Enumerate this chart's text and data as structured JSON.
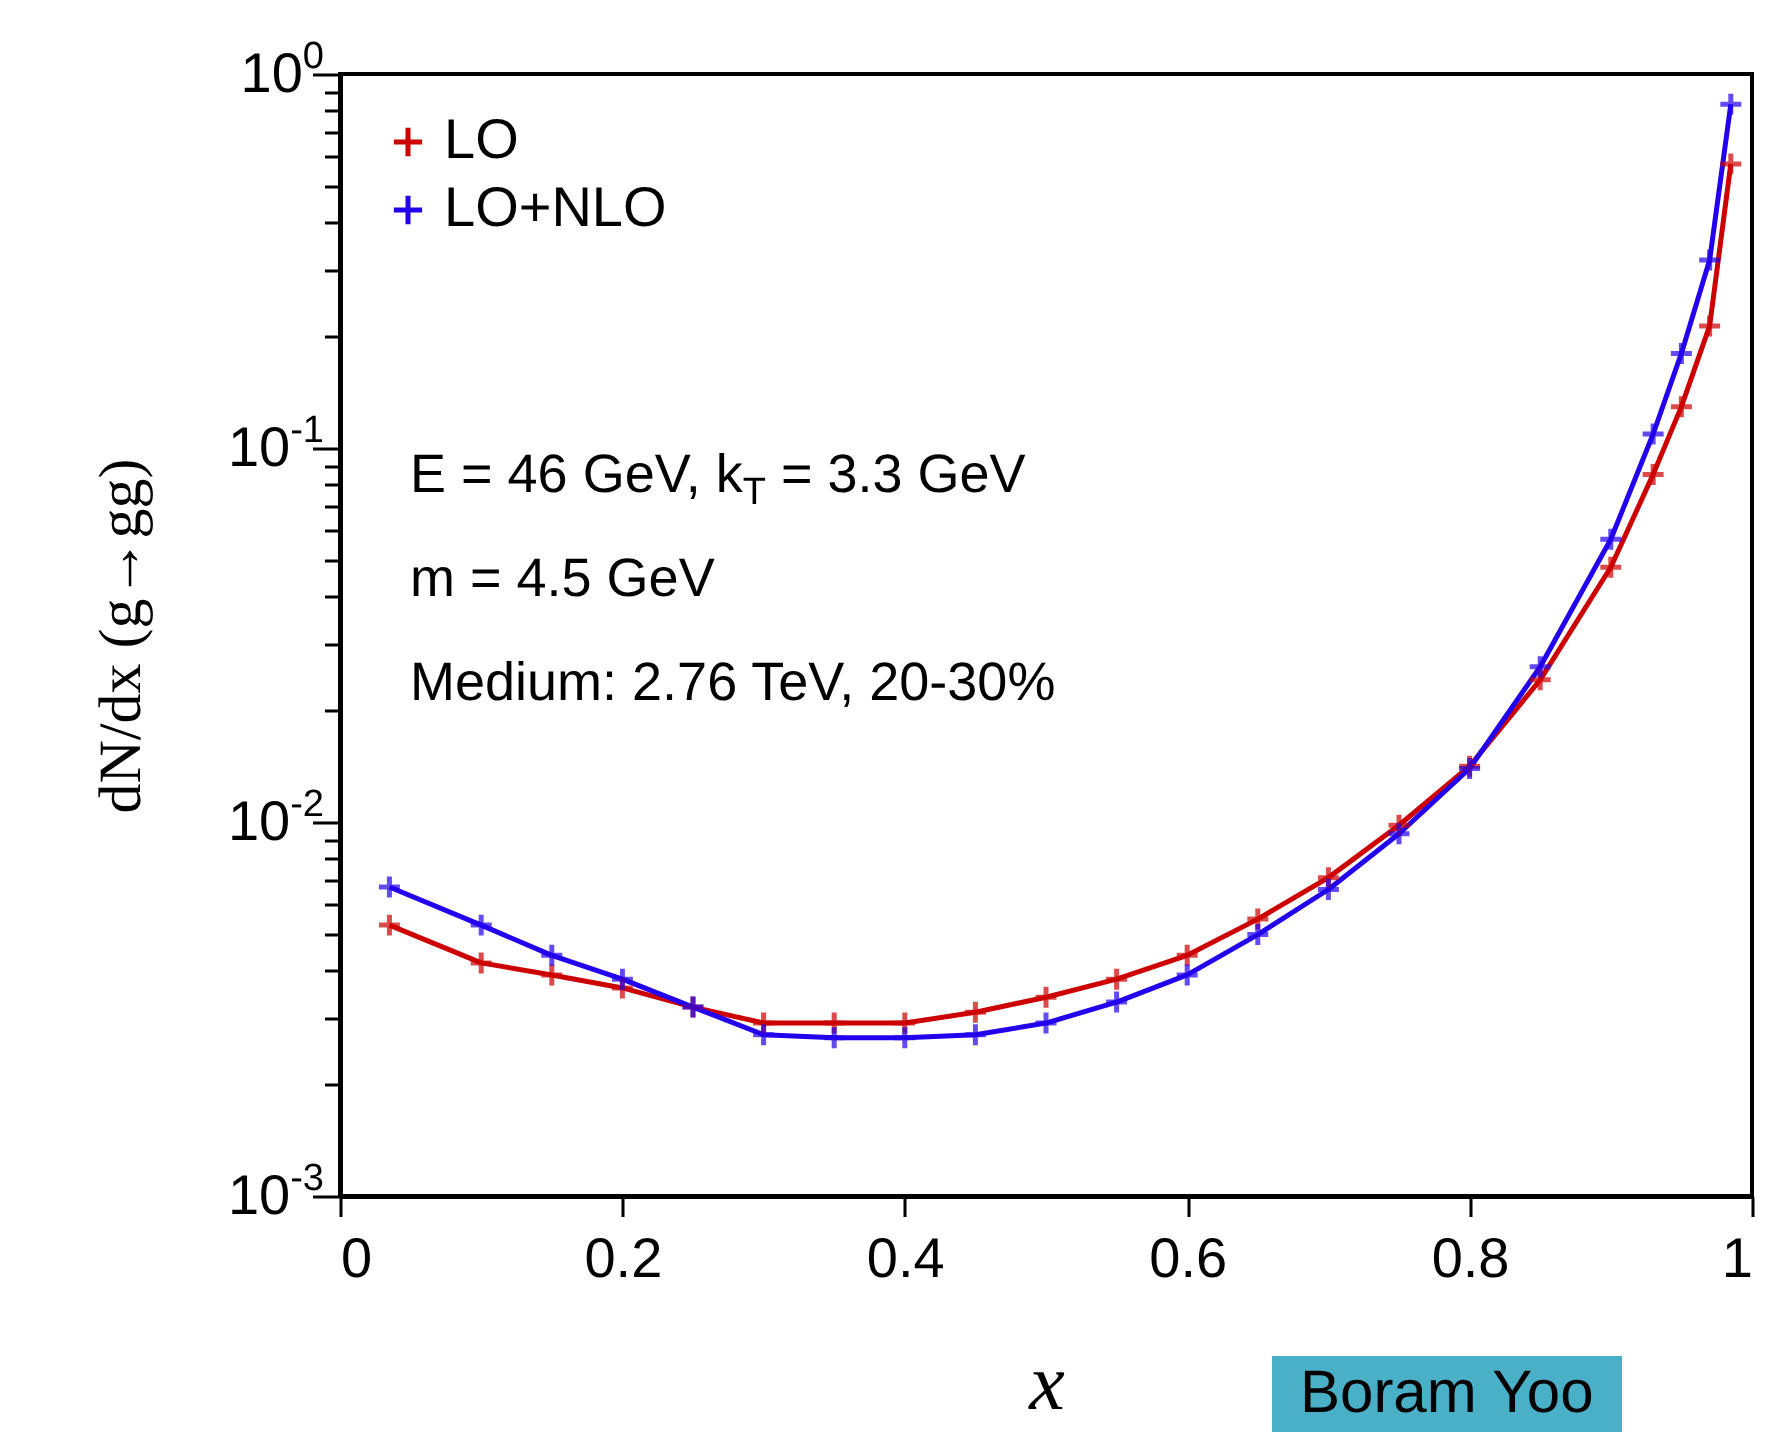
{
  "chart_data": {
    "type": "line",
    "xlabel": "x",
    "ylabel": "dN/dx  (g→gg)",
    "log": "y",
    "grid": false,
    "legend": "top left",
    "marker": "cross",
    "line_style": "solid",
    "x": [
      0.035,
      0.1,
      0.15,
      0.2,
      0.25,
      0.3,
      0.35,
      0.4,
      0.45,
      0.5,
      0.55,
      0.6,
      0.65,
      0.7,
      0.75,
      0.8,
      0.85,
      0.9,
      0.93,
      0.95,
      0.97,
      0.985
    ],
    "xlim": [
      0,
      1
    ],
    "xticks": [
      0,
      0.2,
      0.4,
      0.6,
      0.8,
      1
    ],
    "ylim": [
      0.001,
      1
    ],
    "yticks": [
      {
        "value": 0.001,
        "label": "10$^{-3}$"
      },
      {
        "value": 0.002,
        "label": null
      },
      {
        "value": 0.003,
        "label": null
      },
      {
        "value": 0.004,
        "label": null
      },
      {
        "value": 0.005,
        "label": null
      },
      {
        "value": 0.006,
        "label": null
      },
      {
        "value": 0.007,
        "label": null
      },
      {
        "value": 0.008,
        "label": null
      },
      {
        "value": 0.009,
        "label": null
      },
      {
        "value": 0.01,
        "label": "10$^{-2}$"
      },
      {
        "value": 0.02,
        "label": null
      },
      {
        "value": 0.03,
        "label": null
      },
      {
        "value": 0.04,
        "label": null
      },
      {
        "value": 0.05,
        "label": null
      },
      {
        "value": 0.06,
        "label": null
      },
      {
        "value": 0.07,
        "label": null
      },
      {
        "value": 0.08,
        "label": null
      },
      {
        "value": 0.09,
        "label": null
      },
      {
        "value": 0.1,
        "label": "10$^{-1}$"
      },
      {
        "value": 0.2,
        "label": null
      },
      {
        "value": 0.3,
        "label": null
      },
      {
        "value": 0.4,
        "label": null
      },
      {
        "value": 0.5,
        "label": null
      },
      {
        "value": 0.6,
        "label": null
      },
      {
        "value": 0.7,
        "label": null
      },
      {
        "value": 0.8,
        "label": null
      },
      {
        "value": 0.9,
        "label": null
      },
      {
        "value": 1,
        "label": "10$^{0}$"
      }
    ],
    "series": [
      {
        "name": "LO",
        "color": "#cc0000",
        "values": [
          0.0053,
          0.0042,
          0.0039,
          0.0036,
          0.0032,
          0.0029,
          0.0029,
          0.0029,
          0.0031,
          0.0034,
          0.0038,
          0.0044,
          0.0055,
          0.0071,
          0.0098,
          0.0141,
          0.024,
          0.048,
          0.085,
          0.129,
          0.212,
          0.575
        ]
      },
      {
        "name": "LO+NLO",
        "color": "#2200ee",
        "values": [
          0.0067,
          0.0053,
          0.0044,
          0.0038,
          0.0032,
          0.0027,
          0.00265,
          0.00265,
          0.0027,
          0.0029,
          0.0033,
          0.0039,
          0.005,
          0.0066,
          0.0093,
          0.0139,
          0.026,
          0.057,
          0.109,
          0.179,
          0.318,
          0.83
        ]
      }
    ],
    "annotations": [
      "E = 46 GeV, k$_{T}$ = 3.3 GeV",
      "m = 4.5 GeV",
      "Medium: 2.76 TeV, 20-30%",
      "Boram Yoo"
    ]
  }
}
